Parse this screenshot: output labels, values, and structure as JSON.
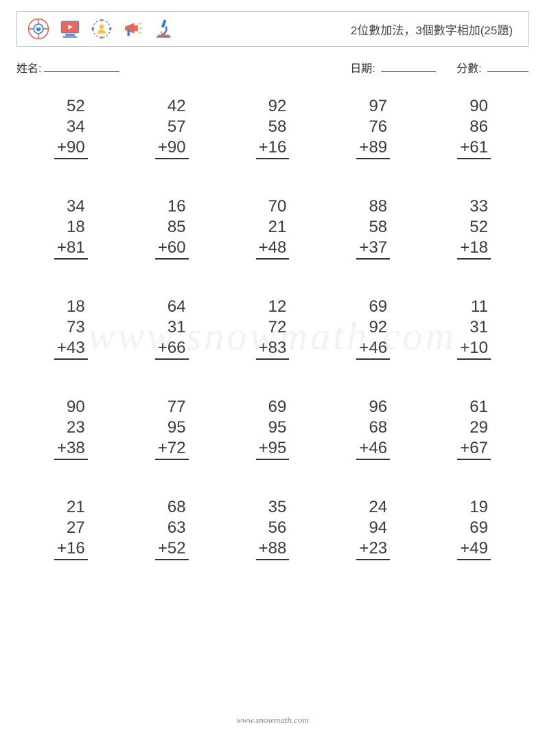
{
  "header": {
    "title": "2位數加法，3個數字相加(25題)",
    "icons": [
      "lifebuoy-icon",
      "monitor-play-icon",
      "user-target-icon",
      "megaphone-icon",
      "microscope-icon"
    ]
  },
  "info": {
    "name_label": "姓名:",
    "date_label": "日期:",
    "score_label": "分數:"
  },
  "worksheet": {
    "type": "math-addition-grid",
    "operator": "+",
    "columns": 5,
    "rows": 5,
    "font_size": 24,
    "text_color": "#3a3a3a",
    "problems": [
      {
        "a": 52,
        "b": 34,
        "c": 90
      },
      {
        "a": 42,
        "b": 57,
        "c": 90
      },
      {
        "a": 92,
        "b": 58,
        "c": 16
      },
      {
        "a": 97,
        "b": 76,
        "c": 89
      },
      {
        "a": 90,
        "b": 86,
        "c": 61
      },
      {
        "a": 34,
        "b": 18,
        "c": 81
      },
      {
        "a": 16,
        "b": 85,
        "c": 60
      },
      {
        "a": 70,
        "b": 21,
        "c": 48
      },
      {
        "a": 88,
        "b": 58,
        "c": 37
      },
      {
        "a": 33,
        "b": 52,
        "c": 18
      },
      {
        "a": 18,
        "b": 73,
        "c": 43
      },
      {
        "a": 64,
        "b": 31,
        "c": 66
      },
      {
        "a": 12,
        "b": 72,
        "c": 83
      },
      {
        "a": 69,
        "b": 92,
        "c": 46
      },
      {
        "a": 11,
        "b": 31,
        "c": 10
      },
      {
        "a": 90,
        "b": 23,
        "c": 38
      },
      {
        "a": 77,
        "b": 95,
        "c": 72
      },
      {
        "a": 69,
        "b": 95,
        "c": 95
      },
      {
        "a": 96,
        "b": 68,
        "c": 46
      },
      {
        "a": 61,
        "b": 29,
        "c": 67
      },
      {
        "a": 21,
        "b": 27,
        "c": 16
      },
      {
        "a": 68,
        "b": 63,
        "c": 52
      },
      {
        "a": 35,
        "b": 56,
        "c": 88
      },
      {
        "a": 24,
        "b": 94,
        "c": 23
      },
      {
        "a": 19,
        "b": 69,
        "c": 49
      }
    ]
  },
  "watermark": "www.snowmath.com",
  "footer": "www.snowmath.com",
  "colors": {
    "border": "#bdbdbd",
    "text": "#333333",
    "background": "#ffffff"
  }
}
